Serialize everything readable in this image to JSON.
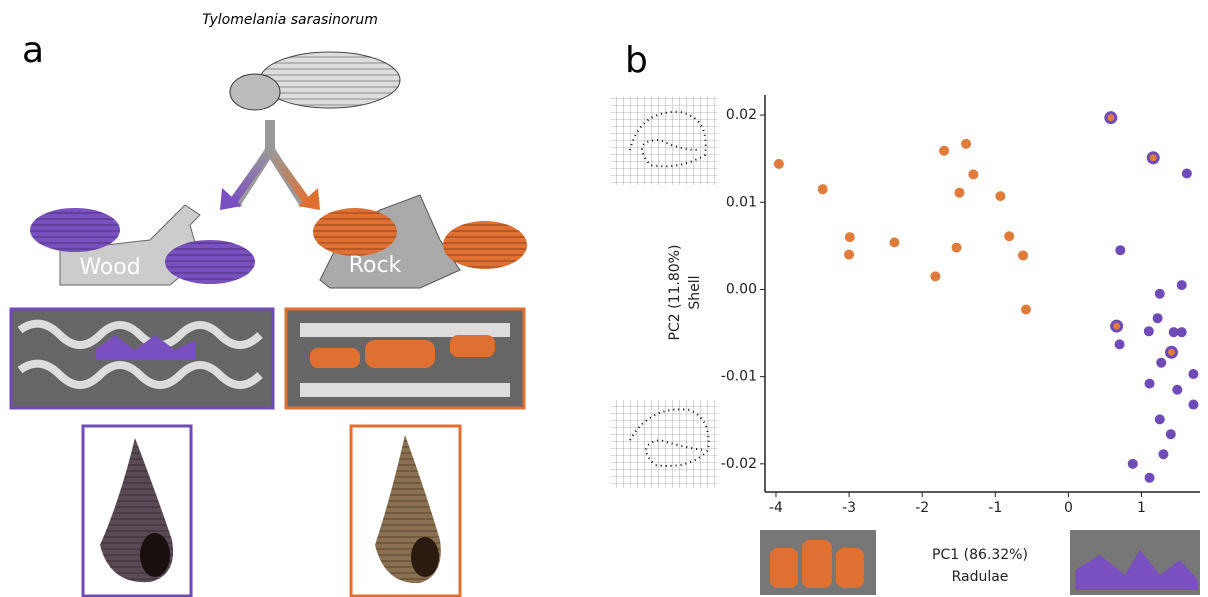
{
  "panel_a": {
    "label": "a",
    "species": "Tylomelania sarasinorum",
    "wood": "Wood",
    "rock": "Rock"
  },
  "panel_b": {
    "label": "b"
  },
  "chart_data": {
    "type": "scatter",
    "x_label": "PC1 (86.32%)",
    "x_sublabel": "Radulae",
    "y_label": "PC2 (11.80%)",
    "y_sublabel": "Shell",
    "xlim": [
      -4.15,
      1.8
    ],
    "ylim": [
      -0.023,
      0.0223
    ],
    "xticks": [
      -4,
      -3,
      -2,
      -1,
      0,
      1
    ],
    "yticks": [
      -0.02,
      -0.01,
      {
        "value": 0,
        "label": "0.00"
      },
      0.01,
      0.02
    ],
    "series": [
      {
        "color": "#e07b3c",
        "x": [
          -3.96,
          -3.36,
          -2.99,
          -3.0,
          -2.38,
          -1.7,
          -1.4,
          -1.3,
          -1.49,
          -0.93,
          -1.53,
          -0.81,
          -1.82,
          -0.62,
          -0.58
        ],
        "values": [
          0.0144,
          0.0115,
          0.006,
          0.004,
          0.0054,
          0.0159,
          0.0167,
          0.0132,
          0.0111,
          0.0107,
          0.0048,
          0.0061,
          0.0015,
          0.0039,
          -0.0023
        ]
      },
      {
        "color": "#6f4bb8",
        "x": [
          1.62,
          0.71,
          1.25,
          1.55,
          1.22,
          1.1,
          0.7,
          1.44,
          1.55,
          1.27,
          1.71,
          1.11,
          1.49,
          1.71,
          1.25,
          1.4,
          1.3,
          0.88,
          1.11
        ],
        "values": [
          0.0133,
          0.0045,
          -0.0005,
          0.0005,
          -0.0033,
          -0.0048,
          -0.0063,
          -0.0049,
          -0.0049,
          -0.0084,
          -0.0097,
          -0.0108,
          -0.0115,
          -0.0132,
          -0.0149,
          -0.0166,
          -0.0189,
          -0.02,
          -0.0216
        ]
      },
      {
        "color": "#e07b3c",
        "stroke": "#6f4bb8",
        "x": [
          0.58,
          1.16,
          0.66,
          1.41
        ],
        "values": [
          0.0197,
          0.0151,
          -0.0042,
          -0.0072
        ]
      }
    ]
  }
}
